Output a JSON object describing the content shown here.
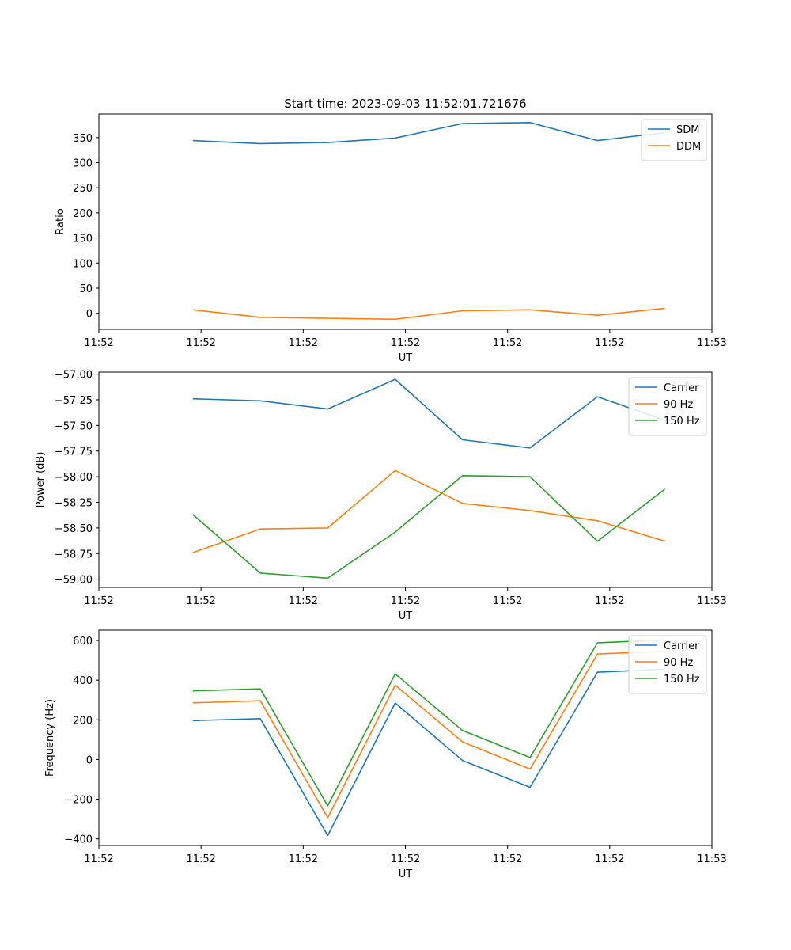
{
  "colors": {
    "c0": "#1f77b4",
    "c1": "#ff7f0e",
    "c2": "#2ca02c"
  },
  "chart_data": [
    {
      "type": "line",
      "title": "Start time: 2023-09-03 11:52:01.721676",
      "xlabel": "UT",
      "ylabel": "Ratio",
      "x": [
        0.46,
        0.79,
        1.12,
        1.45,
        1.78,
        2.11,
        2.44,
        2.77
      ],
      "xlim": [
        0.0,
        3.0
      ],
      "xticks": [
        0,
        0.5,
        1.0,
        1.5,
        2.0,
        2.5,
        3.0
      ],
      "xtick_labels": [
        "11:52",
        "11:52",
        "11:52",
        "11:52",
        "11:52",
        "11:52",
        "11:53"
      ],
      "ylim": [
        -32,
        397
      ],
      "yticks": [
        0,
        50,
        100,
        150,
        200,
        250,
        300,
        350
      ],
      "ytick_labels": [
        "0",
        "50",
        "100",
        "150",
        "200",
        "250",
        "300",
        "350"
      ],
      "legend_position": "top-right",
      "series": [
        {
          "name": "SDM",
          "values": [
            344,
            338,
            340,
            349,
            378,
            380,
            344,
            360
          ]
        },
        {
          "name": "DDM",
          "values": [
            7,
            -8,
            -10,
            -12,
            5,
            7,
            -4,
            10
          ]
        }
      ]
    },
    {
      "type": "line",
      "title": "",
      "xlabel": "UT",
      "ylabel": "Power (dB)",
      "x": [
        0.46,
        0.79,
        1.12,
        1.45,
        1.78,
        2.11,
        2.44,
        2.77
      ],
      "xlim": [
        0.0,
        3.0
      ],
      "xticks": [
        0,
        0.5,
        1.0,
        1.5,
        2.0,
        2.5,
        3.0
      ],
      "xtick_labels": [
        "11:52",
        "11:52",
        "11:52",
        "11:52",
        "11:52",
        "11:52",
        "11:53"
      ],
      "ylim": [
        -59.08,
        -56.98
      ],
      "yticks": [
        -59.0,
        -58.75,
        -58.5,
        -58.25,
        -58.0,
        -57.75,
        -57.5,
        -57.25,
        -57.0
      ],
      "ytick_labels": [
        "−59.00",
        "−58.75",
        "−58.50",
        "−58.25",
        "−58.00",
        "−57.75",
        "−57.50",
        "−57.25",
        "−57.00"
      ],
      "legend_position": "top-right",
      "series": [
        {
          "name": "Carrier",
          "values": [
            -57.24,
            -57.26,
            -57.34,
            -57.05,
            -57.64,
            -57.72,
            -57.22,
            -57.45
          ]
        },
        {
          "name": "90 Hz",
          "values": [
            -58.74,
            -58.51,
            -58.5,
            -57.94,
            -58.26,
            -58.33,
            -58.43,
            -58.63
          ]
        },
        {
          "name": "150 Hz",
          "values": [
            -58.37,
            -58.94,
            -58.99,
            -58.54,
            -57.99,
            -58.0,
            -58.63,
            -58.12
          ]
        }
      ]
    },
    {
      "type": "line",
      "title": "",
      "xlabel": "UT",
      "ylabel": "Frequency (Hz)",
      "x": [
        0.46,
        0.79,
        1.12,
        1.45,
        1.78,
        2.11,
        2.44,
        2.77
      ],
      "xlim": [
        0.0,
        3.0
      ],
      "xticks": [
        0,
        0.5,
        1.0,
        1.5,
        2.0,
        2.5,
        3.0
      ],
      "xtick_labels": [
        "11:52",
        "11:52",
        "11:52",
        "11:52",
        "11:52",
        "11:52",
        "11:53"
      ],
      "ylim": [
        -433,
        652
      ],
      "yticks": [
        -400,
        -200,
        0,
        200,
        400,
        600
      ],
      "ytick_labels": [
        "−400",
        "−200",
        "0",
        "200",
        "400",
        "600"
      ],
      "legend_position": "top-right",
      "series": [
        {
          "name": "Carrier",
          "values": [
            196,
            206,
            -383,
            285,
            -5,
            -140,
            440,
            455
          ]
        },
        {
          "name": "90 Hz",
          "values": [
            286,
            296,
            -293,
            375,
            89,
            -48,
            532,
            545
          ]
        },
        {
          "name": "150 Hz",
          "values": [
            346,
            356,
            -233,
            432,
            146,
            10,
            588,
            603
          ]
        }
      ]
    }
  ]
}
